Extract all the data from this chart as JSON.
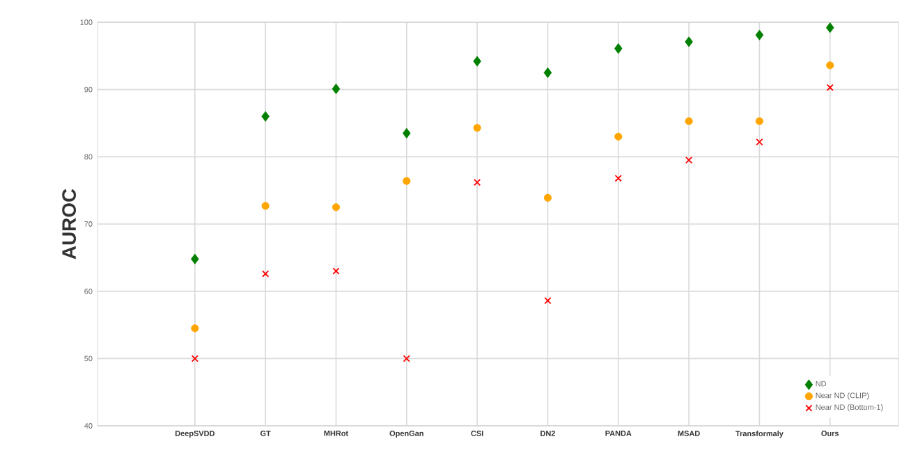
{
  "chart_data": {
    "type": "scatter",
    "ylabel": "AUROC",
    "categories": [
      "DeepSVDD",
      "GT",
      "MHRot",
      "OpenGan",
      "CSI",
      "DN2",
      "PANDA",
      "MSAD",
      "Transformaly",
      "Ours"
    ],
    "series": [
      {
        "name": "ND",
        "color": "#008000",
        "marker": "diamond",
        "values": [
          64.8,
          86,
          90.1,
          83.5,
          94.2,
          92.5,
          96.1,
          97.1,
          98.1,
          99.2
        ]
      },
      {
        "name": "Near ND (CLIP)",
        "color": "#ffa500",
        "marker": "circle",
        "values": [
          54.5,
          72.7,
          72.5,
          76.4,
          84.3,
          73.9,
          83,
          85.3,
          85.3,
          93.6
        ]
      },
      {
        "name": "Near ND (Bottom-1)",
        "color": "#ff0000",
        "marker": "cross",
        "values": [
          50,
          62.6,
          63,
          50,
          76.2,
          58.6,
          76.8,
          79.5,
          82.2,
          90.3
        ]
      }
    ],
    "ylim": [
      40,
      100
    ],
    "yticks": [
      40,
      50,
      60,
      70,
      80,
      90,
      100
    ],
    "grid": true,
    "legend": "bottom right"
  }
}
